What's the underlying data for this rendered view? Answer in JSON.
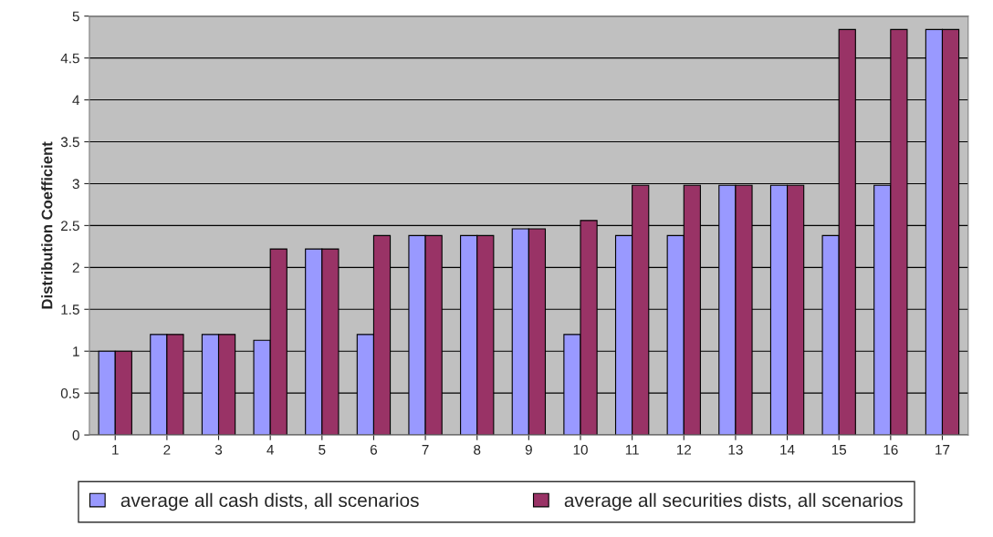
{
  "chart_data": {
    "type": "bar",
    "ylabel": "Distribution Coefficient",
    "categories": [
      "1",
      "2",
      "3",
      "4",
      "5",
      "6",
      "7",
      "8",
      "9",
      "10",
      "11",
      "12",
      "13",
      "14",
      "15",
      "16",
      "17"
    ],
    "series": [
      {
        "name": "average all cash dists, all scenarios",
        "color": "#9999ff",
        "values": [
          1.0,
          1.2,
          1.2,
          1.13,
          2.22,
          1.2,
          2.38,
          2.38,
          2.46,
          1.2,
          2.38,
          2.38,
          2.98,
          2.98,
          2.38,
          2.98,
          4.84
        ]
      },
      {
        "name": "average all securities dists, all scenarios",
        "color": "#993366",
        "values": [
          1.0,
          1.2,
          1.2,
          2.22,
          2.22,
          2.38,
          2.38,
          2.38,
          2.46,
          2.56,
          2.98,
          2.98,
          2.98,
          2.98,
          4.84,
          4.84,
          4.84
        ]
      }
    ],
    "ylim": [
      0,
      5
    ],
    "yticks": [
      0,
      0.5,
      1,
      1.5,
      2,
      2.5,
      3,
      3.5,
      4,
      4.5,
      5
    ],
    "grid": "y",
    "legend": "bottom"
  }
}
